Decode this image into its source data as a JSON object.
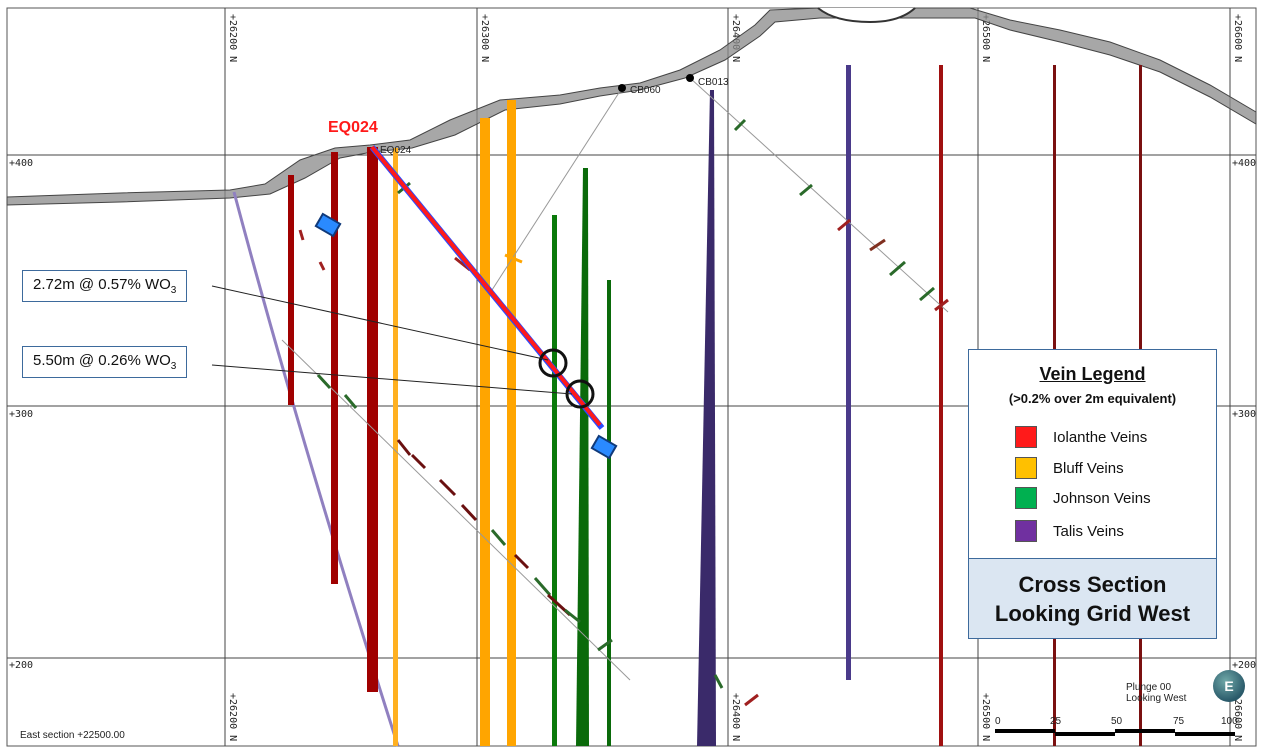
{
  "grid": {
    "northings": [
      "+26200 N",
      "+26300 N",
      "+26400 N",
      "+26500 N",
      "+26600 N"
    ],
    "elevations": [
      "+400",
      "+300",
      "+200"
    ]
  },
  "drillholes": {
    "main": "EQ024",
    "main_collar_label": "EQ024",
    "others": [
      "CB060",
      "CB013"
    ]
  },
  "intercepts": [
    {
      "text": "2.72m @ 0.57% WO",
      "sub": "3"
    },
    {
      "text": "5.50m @ 0.26% WO",
      "sub": "3"
    }
  ],
  "legend": {
    "title": "Vein Legend",
    "subtitle": "(>0.2% over 2m equivalent)",
    "items": [
      {
        "label": "Iolanthe Veins",
        "color": "#ff1a1a"
      },
      {
        "label": "Bluff Veins",
        "color": "#ffc000"
      },
      {
        "label": "Johnson Veins",
        "color": "#00b050"
      },
      {
        "label": "Talis Veins",
        "color": "#7030a0"
      }
    ],
    "section_line1": "Cross Section",
    "section_line2": "Looking Grid West"
  },
  "footer": {
    "section_name": "East section +22500.00",
    "plunge": "Plunge 00",
    "looking": "Looking West",
    "compass_letter": "E",
    "scale_ticks": [
      "0",
      "25",
      "50",
      "75",
      "100"
    ]
  },
  "colors": {
    "terrain": "#8a8a8a",
    "grid": "#444444",
    "iolanthe_dark": "#a00000",
    "bluff": "#ffa500",
    "johnson": "#0a6a0a",
    "talis": "#3a2a6a",
    "talis_light": "#9080c0",
    "callout_border": "#3d6a9c"
  }
}
